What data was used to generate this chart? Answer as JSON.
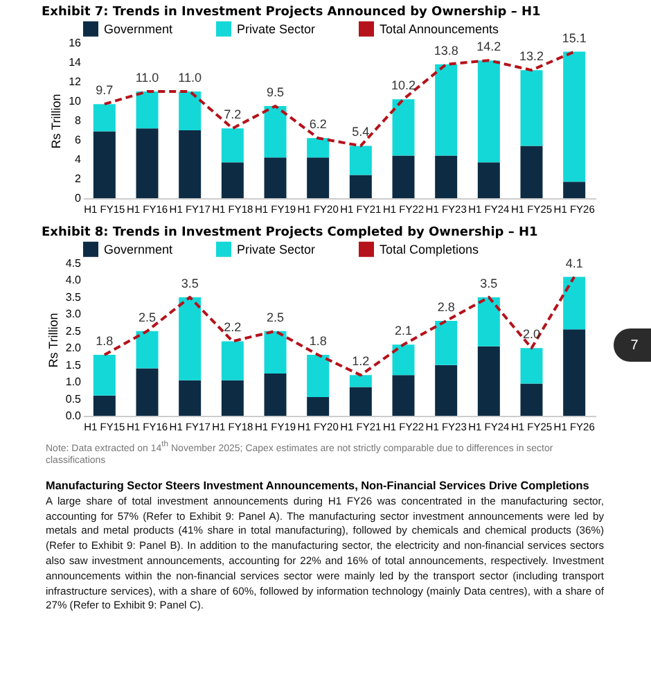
{
  "chart_data": [
    {
      "type": "bar",
      "title": "Exhibit 7: Trends in Investment Projects Announced by Ownership – H1",
      "ylabel": "Rs Trillion",
      "stacked": true,
      "legend": "top",
      "categories": [
        "H1 FY15",
        "H1 FY16",
        "H1 FY17",
        "H1 FY18",
        "H1 FY19",
        "H1 FY20",
        "H1 FY21",
        "H1 FY22",
        "H1 FY23",
        "H1 FY24",
        "H1 FY25",
        "H1 FY26"
      ],
      "ylim": [
        0,
        16
      ],
      "yticks": [
        0,
        2,
        4,
        6,
        8,
        10,
        12,
        14,
        16
      ],
      "line_style": "dashed",
      "series": [
        {
          "name": "Government",
          "color": "#0d2c44",
          "values": [
            6.9,
            7.2,
            7.0,
            3.7,
            4.2,
            4.2,
            2.4,
            4.4,
            4.4,
            3.7,
            5.4,
            1.7
          ]
        },
        {
          "name": "Private Sector",
          "color": "#14d8d8",
          "values": [
            2.8,
            3.8,
            4.0,
            3.5,
            5.3,
            2.0,
            3.0,
            5.8,
            9.4,
            10.5,
            7.8,
            13.4
          ]
        },
        {
          "name": "Total Announcements",
          "type": "line",
          "color": "#b5121b",
          "values": [
            9.7,
            11.0,
            11.0,
            7.2,
            9.5,
            6.2,
            5.4,
            10.2,
            13.8,
            14.2,
            13.2,
            15.1
          ],
          "value_labels": [
            "9.7",
            "11.0",
            "11.0",
            "7.2",
            "9.5",
            "6.2",
            "5.4",
            "10.2",
            "13.8",
            "14.2",
            "13.2",
            "15.1"
          ]
        }
      ]
    },
    {
      "type": "bar",
      "title": "Exhibit 8: Trends in Investment Projects Completed by Ownership – H1",
      "ylabel": "Rs Trillion",
      "stacked": true,
      "legend": "top",
      "categories": [
        "H1 FY15",
        "H1 FY16",
        "H1 FY17",
        "H1 FY18",
        "H1 FY19",
        "H1 FY20",
        "H1 FY21",
        "H1 FY22",
        "H1 FY23",
        "H1 FY24",
        "H1 FY25",
        "H1 FY26"
      ],
      "ylim": [
        0,
        4.5
      ],
      "yticks": [
        {
          "value": 0,
          "label": "0.0"
        },
        0.5,
        {
          "value": 1,
          "label": "1.0"
        },
        1.5,
        {
          "value": 2,
          "label": "2.0"
        },
        2.5,
        {
          "value": 3,
          "label": "3.0"
        },
        3.5,
        {
          "value": 4,
          "label": "4.0"
        },
        4.5
      ],
      "line_style": "dashed",
      "series": [
        {
          "name": "Government",
          "color": "#0d2c44",
          "values": [
            0.6,
            1.4,
            1.05,
            1.05,
            1.25,
            0.55,
            0.85,
            1.2,
            1.5,
            2.05,
            0.95,
            2.55
          ]
        },
        {
          "name": "Private Sector",
          "color": "#14d8d8",
          "values": [
            1.2,
            1.1,
            2.45,
            1.15,
            1.25,
            1.25,
            0.35,
            0.9,
            1.3,
            1.45,
            1.05,
            1.55
          ]
        },
        {
          "name": "Total Completions",
          "type": "line",
          "color": "#b5121b",
          "values": [
            1.8,
            2.5,
            3.5,
            2.2,
            2.5,
            1.8,
            1.2,
            2.1,
            2.8,
            3.5,
            2.0,
            4.1
          ],
          "value_labels": [
            "1.8",
            "2.5",
            "3.5",
            "2.2",
            "2.5",
            "1.8",
            "1.2",
            "2.1",
            "2.8",
            "3.5",
            "2.0",
            "4.1"
          ]
        }
      ],
      "annotations": [
        "Note: Data extracted on 14$^{th}$ November 2025; Capex estimates are not strictly comparable due to differences in sector classifications",
        "Manufacturing Sector Steers Investment Announcements, Non-Financial Services Drive Completions",
        "A large share of total investment announcements during H1 FY26 was concentrated in the manufacturing sector, accounting for 57% (Refer to Exhibit 9: Panel A). The manufacturing sector investment announcements were led by metals and metal products (41% share in total manufacturing), followed by chemicals and chemical products (36%) (Refer to Exhibit 9: Panel B). In addition to the manufacturing sector, the electricity and non-financial services sectors also saw investment announcements, accounting for 22% and 16% of total announcements, respectively. Investment announcements within the non-financial services sector were mainly led by the transport sector (including transport infrastructure services), with a share of 60%, followed by information technology (mainly Data centres), with a share of 27% (Refer to Exhibit 9: Panel C).",
        "7"
      ]
    }
  ]
}
